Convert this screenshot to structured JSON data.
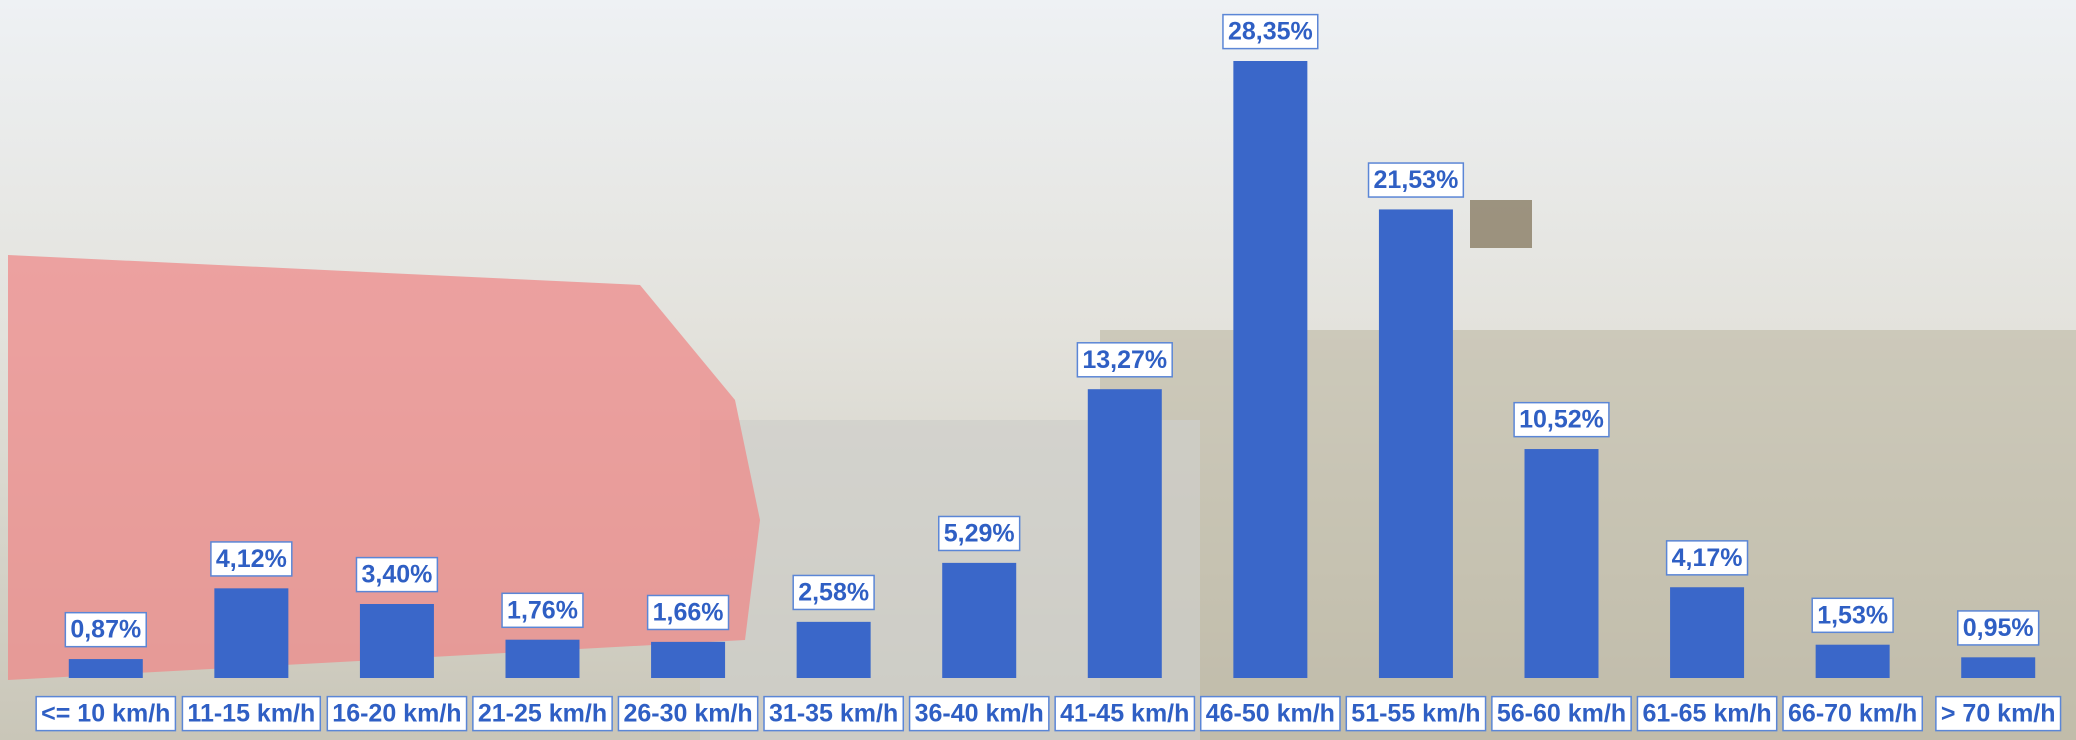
{
  "chart_data": {
    "type": "bar",
    "categories": [
      "<= 10 km/h",
      "11-15 km/h",
      "16-20 km/h",
      "21-25 km/h",
      "26-30 km/h",
      "31-35 km/h",
      "36-40 km/h",
      "41-45 km/h",
      "46-50 km/h",
      "51-55 km/h",
      "56-60 km/h",
      "61-65 km/h",
      "66-70 km/h",
      "> 70 km/h"
    ],
    "values": [
      0.87,
      4.12,
      3.4,
      1.76,
      1.66,
      2.58,
      5.29,
      13.27,
      28.35,
      21.53,
      10.52,
      4.17,
      1.53,
      0.95
    ],
    "value_labels": [
      "0,87%",
      "4,12%",
      "3,40%",
      "1,76%",
      "1,66%",
      "2,58%",
      "5,29%",
      "13,27%",
      "28,35%",
      "21,53%",
      "10,52%",
      "4,17%",
      "1,53%",
      "0,95%"
    ],
    "color": "#3a67c9"
  }
}
